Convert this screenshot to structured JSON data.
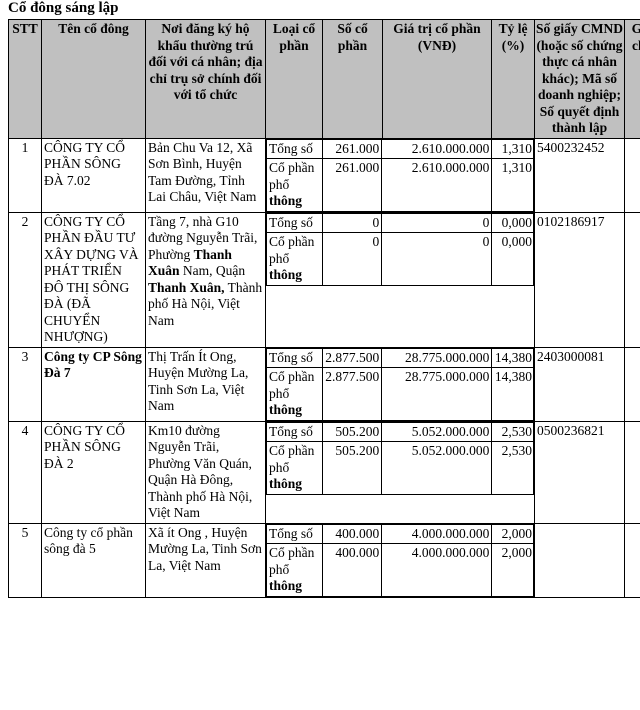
{
  "title": "Cổ đông sáng lập",
  "colors": {
    "header_bg": "#c0c0c0",
    "border": "#000000",
    "text": "#000000"
  },
  "table": {
    "headers": [
      "STT",
      "Tên cổ đông",
      "Nơi đăng ký hộ khẩu thường trú đối với cá nhân; địa chỉ trụ sở chính đối với tổ chức",
      "Loại cổ phần",
      "Số cổ phần",
      "Giá trị cổ phần (VNĐ)",
      "Tỷ lệ (%)",
      "Số giấy CMND (hoặc số chứng thực cá nhân khác); Mã số doanh nghiệp; Số quyết định thành lập",
      "Ghi chú"
    ],
    "share_type_labels": {
      "total": "Tổng số",
      "common": "Cổ phần phổ thông"
    },
    "rows": [
      {
        "stt": "1",
        "name": {
          "text": "CÔNG TY CỔ PHẦN SÔNG ĐÀ 7.02",
          "bold": false
        },
        "address": [
          {
            "text": "Bản Chu Va 12, Xã Sơn Bình, Huyện Tam Đường, Tỉnh Lai Châu, Việt Nam",
            "bold": false
          }
        ],
        "share_rows": [
          {
            "label": [
              {
                "text": "Tổng số",
                "bold": false
              }
            ],
            "shares": "261.000",
            "value": "2.610.000.000",
            "ratio": "1,310"
          },
          {
            "label": [
              {
                "text": "Cổ phần phổ ",
                "bold": false
              },
              {
                "text": "thông",
                "bold": true
              }
            ],
            "shares": "261.000",
            "value": "2.610.000.000",
            "ratio": "1,310"
          }
        ],
        "id_number": "5400232452",
        "note": ""
      },
      {
        "stt": "2",
        "name": {
          "text": "CÔNG TY CỔ PHẦN ĐẦU TƯ XÂY DỰNG VÀ PHÁT TRIỂN ĐÔ THỊ SÔNG ĐÀ (ĐÃ CHUYỂN NHƯỢNG)",
          "bold": false
        },
        "address": [
          {
            "text": "Tầng 7, nhà G10 đường Nguyễn Trãi, Phường ",
            "bold": false
          },
          {
            "text": "Thanh Xuân",
            "bold": true
          },
          {
            "text": " Nam, Quận ",
            "bold": false
          },
          {
            "text": "Thanh Xuân,",
            "bold": true
          },
          {
            "text": " Thành phố Hà Nội, Việt Nam",
            "bold": false
          }
        ],
        "share_rows": [
          {
            "label": [
              {
                "text": "Tổng số",
                "bold": false
              }
            ],
            "shares": "0",
            "value": "0",
            "ratio": "0,000"
          },
          {
            "label": [
              {
                "text": "Cổ phần phổ ",
                "bold": false
              },
              {
                "text": "thông",
                "bold": true
              }
            ],
            "shares": "0",
            "value": "0",
            "ratio": "0,000"
          }
        ],
        "id_number": "0102186917",
        "note": ""
      },
      {
        "stt": "3",
        "name": {
          "text": "Công ty CP Sông Đà 7",
          "bold": true
        },
        "address": [
          {
            "text": "Thị Trấn Ít Ong, Huyện Mường La, Tinh Sơn La, Việt Nam",
            "bold": false
          }
        ],
        "share_rows": [
          {
            "label": [
              {
                "text": "Tổng số",
                "bold": false
              }
            ],
            "shares": "2.877.500",
            "value": "28.775.000.000",
            "ratio": "14,380"
          },
          {
            "label": [
              {
                "text": "Cổ phần phổ ",
                "bold": false
              },
              {
                "text": "thông",
                "bold": true
              }
            ],
            "shares": "2.877.500",
            "value": "28.775.000.000",
            "ratio": "14,380"
          }
        ],
        "id_number": "2403000081",
        "note": ""
      },
      {
        "stt": "4",
        "name": {
          "text": "CÔNG TY CỔ PHẦN SÔNG ĐÀ 2",
          "bold": false
        },
        "address": [
          {
            "text": "Km10 đường Nguyễn Trãi, Phường Văn Quán, Quận Hà Đông, Thành phố Hà Nội, Việt Nam",
            "bold": false
          }
        ],
        "share_rows": [
          {
            "label": [
              {
                "text": "Tổng số",
                "bold": false
              }
            ],
            "shares": "505.200",
            "value": "5.052.000.000",
            "ratio": "2,530"
          },
          {
            "label": [
              {
                "text": "Cổ phần phổ ",
                "bold": false
              },
              {
                "text": "thông",
                "bold": true
              }
            ],
            "shares": "505.200",
            "value": "5.052.000.000",
            "ratio": "2,530"
          }
        ],
        "id_number": "0500236821",
        "note": ""
      },
      {
        "stt": "5",
        "name": {
          "text": "Công ty cổ phần sông đà 5",
          "bold": false
        },
        "address": [
          {
            "text": "Xã ít Ong , Huyện Mường La, Tinh Sơn La, Việt Nam",
            "bold": false
          }
        ],
        "share_rows": [
          {
            "label": [
              {
                "text": "Tổng số",
                "bold": false
              }
            ],
            "shares": "400.000",
            "value": "4.000.000.000",
            "ratio": "2,000"
          },
          {
            "label": [
              {
                "text": "Cổ phần phổ ",
                "bold": false
              },
              {
                "text": "thông",
                "bold": true
              }
            ],
            "shares": "400.000",
            "value": "4.000.000.000",
            "ratio": "2,000"
          }
        ],
        "id_number": "",
        "note": ""
      }
    ]
  }
}
